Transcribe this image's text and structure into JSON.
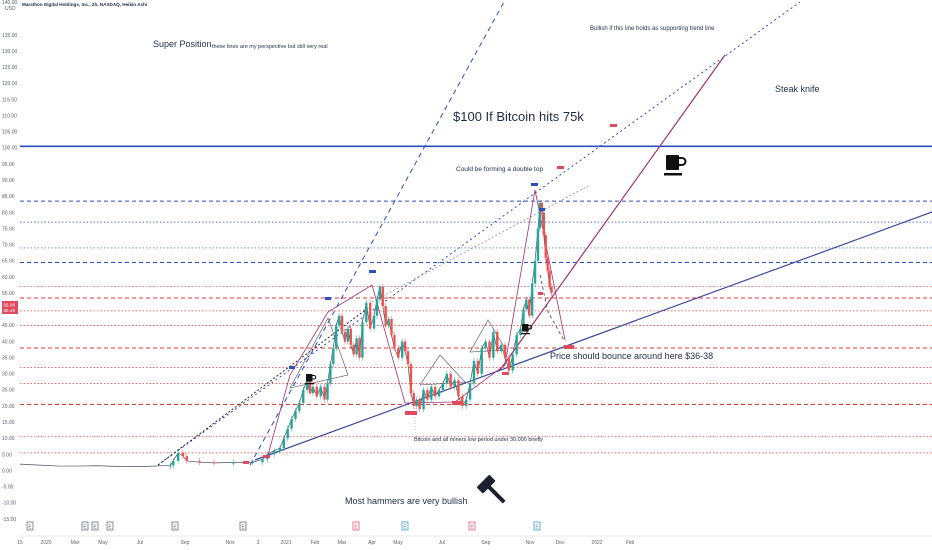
{
  "header": {
    "title": "Marathon Digital Holdings, Inc., 2h, NASDAQ, Heikin Ashi",
    "currency": "USD",
    "top_value": "140.00"
  },
  "price_tag": {
    "current": "56.08",
    "secondary": "55.45"
  },
  "colors": {
    "blue_line": "#2b4fbf",
    "red_line": "#e53935",
    "purple_line": "#a0336e",
    "navy_line": "#3d4a9c",
    "candle_up": "#26a69a",
    "candle_down": "#ef5350",
    "tag_red": "#e04a5f"
  },
  "annotations": {
    "super_position": "Super Position",
    "perspective": "these lines are my perspective but still very real",
    "bullish_line": "Bullish if this line holds as supporting trend line",
    "steak_knife": "Steak knife",
    "bitcoin_75k": "$100 If Bitcoin hits 75k",
    "double_top": "Could be forming a double top",
    "bounce": "Price should bounce around here $36-38",
    "bitcoin_low": "Bitcoin and all miners low period under 30,000 briefly",
    "hammers": "Most hammers are very bullish"
  },
  "chart_data": {
    "type": "line",
    "title": "Marathon Digital Holdings, Inc., 2h, NASDAQ, Heikin Ashi",
    "ylabel": "USD",
    "ylim": [
      -17,
      140
    ],
    "y_ticks": [
      "135.00",
      "130.00",
      "125.00",
      "120.00",
      "115.00",
      "110.00",
      "105.00",
      "100.00",
      "95.00",
      "90.00",
      "85.00",
      "80.00",
      "75.00",
      "70.00",
      "65.00",
      "60.00",
      "55.00",
      "50.00",
      "45.00",
      "40.00",
      "35.00",
      "30.00",
      "25.00",
      "20.00",
      "15.00",
      "10.00",
      "5.00",
      "0.00",
      "-5.00",
      "-10.00",
      "-15.00"
    ],
    "x_ticks": [
      "15",
      "2020",
      "Mar",
      "May",
      "Jul",
      "Sep",
      "Nov",
      "3",
      "2021",
      "Feb",
      "Mar",
      "Apr",
      "May",
      "Jul",
      "Sep",
      "Nov",
      "Dec",
      "2022",
      "Feb"
    ],
    "horizontal_levels": [
      {
        "value": 100.5,
        "style": "solid",
        "color": "#2b4fbf"
      },
      {
        "value": 83.5,
        "style": "dashed",
        "color": "#2b4fbf"
      },
      {
        "value": 77,
        "style": "dotted",
        "color": "#2b4fbf"
      },
      {
        "value": 69,
        "style": "dotted",
        "color": "#2b4fbf"
      },
      {
        "value": 64.5,
        "style": "dashed",
        "color": "#2b4fbf"
      },
      {
        "value": 57,
        "style": "dotted",
        "color": "#e53935"
      },
      {
        "value": 53.5,
        "style": "dashed",
        "color": "#e53935"
      },
      {
        "value": 49.5,
        "style": "dotted",
        "color": "#e53935"
      },
      {
        "value": 45,
        "style": "dotted",
        "color": "#e53935"
      },
      {
        "value": 38,
        "style": "dashed",
        "color": "#e53935"
      },
      {
        "value": 32,
        "style": "dotted",
        "color": "#e53935"
      },
      {
        "value": 27,
        "style": "dotted",
        "color": "#e53935"
      },
      {
        "value": 20.5,
        "style": "dashed",
        "color": "#e53935"
      },
      {
        "value": 10.5,
        "style": "dotted",
        "color": "#e53935"
      },
      {
        "value": 5.5,
        "style": "dotted",
        "color": "#e53935"
      }
    ],
    "series": [
      {
        "values": [
          [
            0,
            2
          ],
          [
            20,
            1.7
          ],
          [
            40,
            1.4
          ],
          [
            60,
            1.4
          ],
          [
            80,
            1.5
          ],
          [
            100,
            1.3
          ],
          [
            130,
            1.3
          ],
          [
            155,
            1.6
          ],
          [
            158,
            3
          ],
          [
            163,
            5.5
          ],
          [
            168,
            4.5
          ],
          [
            172,
            3
          ],
          [
            185,
            2.6
          ],
          [
            200,
            2.4
          ],
          [
            220,
            2.5
          ],
          [
            240,
            2.6
          ],
          [
            250,
            3.5
          ],
          [
            255,
            5
          ],
          [
            262,
            6.2
          ],
          [
            268,
            7
          ],
          [
            272,
            10
          ],
          [
            276,
            13
          ],
          [
            280,
            16
          ],
          [
            284,
            18.5
          ],
          [
            288,
            21
          ],
          [
            292,
            25
          ],
          [
            296,
            28
          ],
          [
            299,
            24
          ],
          [
            302,
            26
          ],
          [
            306,
            23
          ],
          [
            310,
            26
          ],
          [
            314,
            22
          ],
          [
            317,
            27
          ],
          [
            320,
            33
          ],
          [
            323,
            38
          ],
          [
            326,
            45
          ],
          [
            329,
            48
          ],
          [
            332,
            43
          ],
          [
            335,
            40
          ],
          [
            338,
            44
          ],
          [
            341,
            39
          ],
          [
            344,
            36
          ],
          [
            347,
            41
          ],
          [
            350,
            35
          ],
          [
            353,
            46
          ],
          [
            357,
            52
          ],
          [
            361,
            44
          ],
          [
            365,
            48
          ],
          [
            368,
            53
          ],
          [
            371,
            57
          ],
          [
            374,
            51
          ],
          [
            377,
            45
          ],
          [
            380,
            47
          ],
          [
            383,
            42
          ],
          [
            386,
            38
          ],
          [
            390,
            35
          ],
          [
            394,
            40
          ],
          [
            397,
            37
          ],
          [
            400,
            33
          ],
          [
            403,
            24
          ],
          [
            406,
            20
          ],
          [
            409,
            22
          ],
          [
            412,
            19
          ],
          [
            416,
            25
          ],
          [
            420,
            22
          ],
          [
            424,
            26
          ],
          [
            428,
            23
          ],
          [
            432,
            25
          ],
          [
            436,
            27
          ],
          [
            440,
            30
          ],
          [
            444,
            26
          ],
          [
            448,
            28
          ],
          [
            452,
            23
          ],
          [
            456,
            20
          ],
          [
            460,
            22
          ],
          [
            464,
            27
          ],
          [
            468,
            34
          ],
          [
            472,
            30
          ],
          [
            476,
            38
          ],
          [
            480,
            40
          ],
          [
            484,
            35
          ],
          [
            488,
            43
          ],
          [
            492,
            37
          ],
          [
            496,
            39
          ],
          [
            500,
            35
          ],
          [
            504,
            31
          ],
          [
            508,
            36
          ],
          [
            512,
            42
          ],
          [
            516,
            44
          ],
          [
            519,
            50
          ],
          [
            522,
            53
          ],
          [
            525,
            48
          ],
          [
            528,
            58
          ],
          [
            531,
            65
          ],
          [
            534,
            75
          ],
          [
            536,
            83
          ],
          [
            538,
            80
          ],
          [
            540,
            73
          ],
          [
            542,
            66
          ],
          [
            544,
            62
          ],
          [
            546,
            57
          ],
          [
            548,
            55
          ]
        ]
      }
    ]
  }
}
